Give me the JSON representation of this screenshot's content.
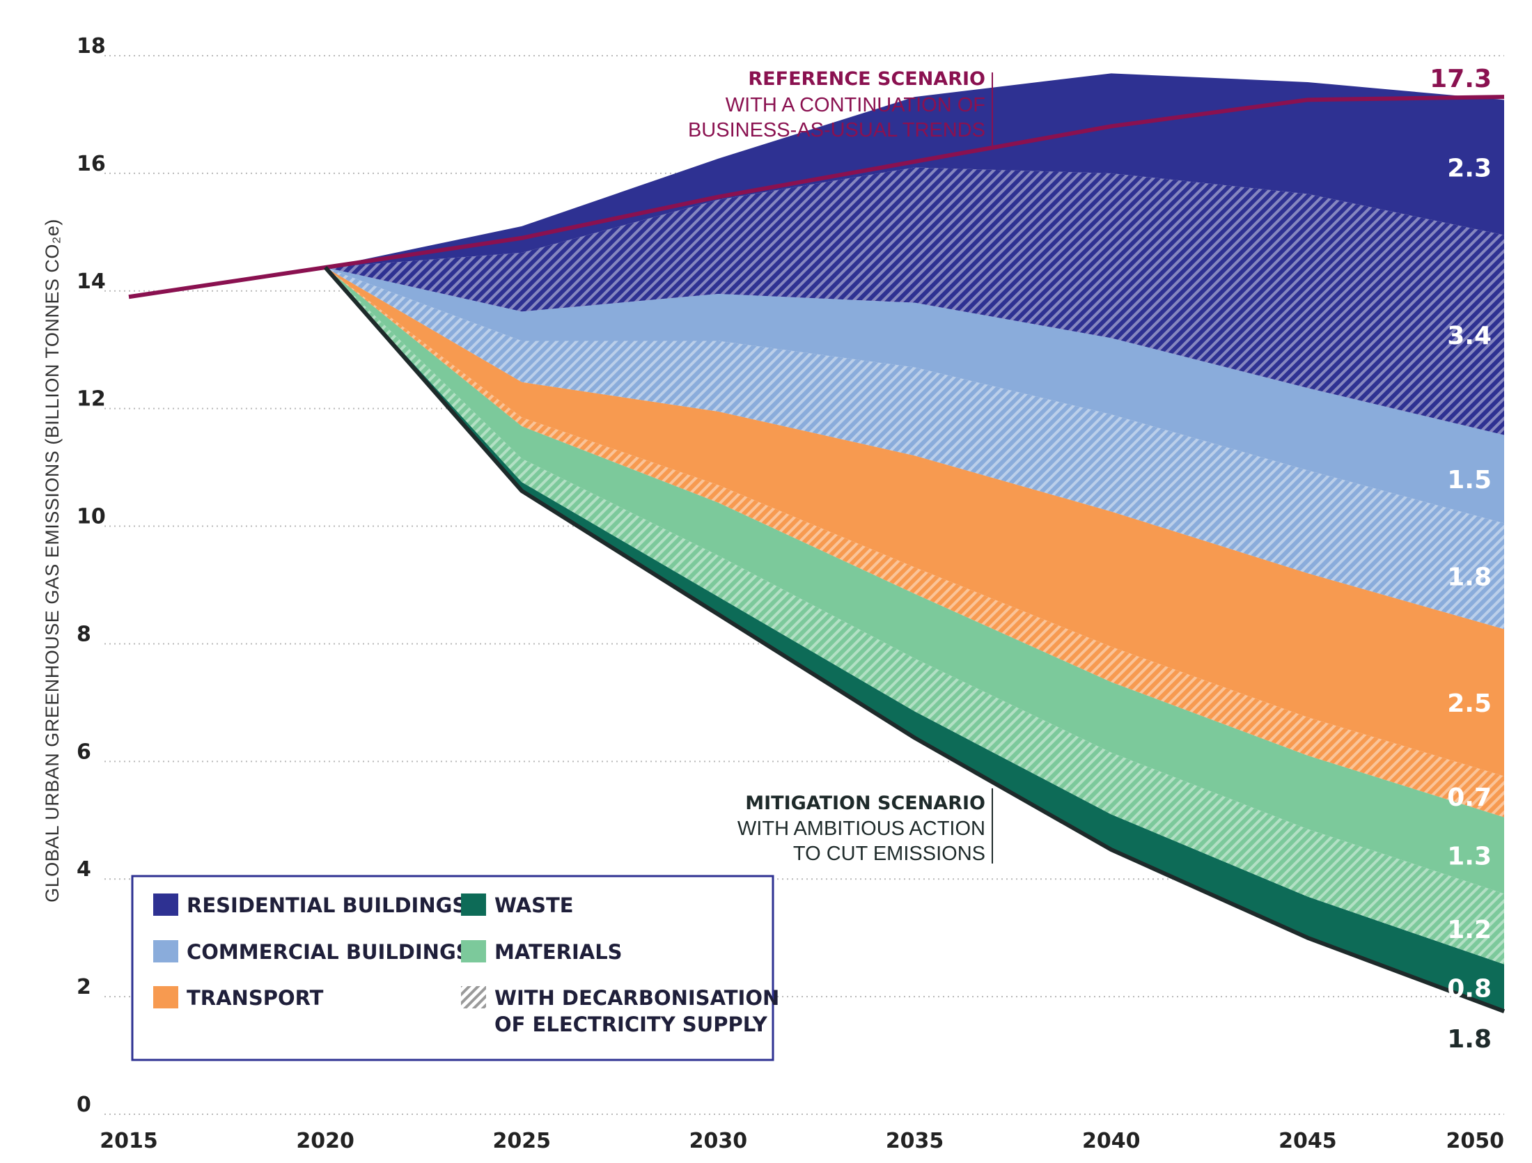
{
  "chart_data": {
    "type": "area",
    "title": "",
    "ylabel": "GLOBAL URBAN GREENHOUSE GAS EMISSIONS (BILLION TONNES CO₂e)",
    "xlabel": "",
    "x": [
      2015,
      2020,
      2025,
      2030,
      2035,
      2040,
      2045,
      2050
    ],
    "ylim": [
      0,
      18
    ],
    "yticks": [
      0,
      2,
      4,
      6,
      8,
      10,
      12,
      14,
      16,
      18
    ],
    "grid": "horizontal dotted",
    "reference_scenario": {
      "name": "REFERENCE SCENARIO",
      "x": [
        2015,
        2020,
        2025,
        2030,
        2035,
        2040,
        2045,
        2050
      ],
      "values": [
        13.9,
        14.4,
        14.9,
        15.6,
        16.2,
        16.8,
        17.25,
        17.3
      ],
      "color": "#8a1150"
    },
    "mitigation_scenario": {
      "name": "MITIGATION SCENARIO",
      "x": [
        2020,
        2025,
        2030,
        2035,
        2040,
        2045,
        2050
      ],
      "values": [
        14.4,
        10.6,
        8.5,
        6.4,
        4.5,
        3.0,
        1.75
      ],
      "color": "#1e2a2a"
    },
    "series": [
      {
        "name": "WASTE",
        "x": [
          2020,
          2025,
          2030,
          2035,
          2040,
          2045,
          2050
        ],
        "values": [
          0.0,
          0.15,
          0.3,
          0.45,
          0.6,
          0.7,
          0.8
        ],
        "color": "#0d6b57",
        "hatched": false,
        "end_label": "0.8"
      },
      {
        "name": "MATERIALS (WITH DECARBONISATION OF ELECTRICITY SUPPLY)",
        "x": [
          2020,
          2025,
          2030,
          2035,
          2040,
          2045,
          2050
        ],
        "values": [
          0.0,
          0.4,
          0.7,
          0.9,
          1.05,
          1.15,
          1.2
        ],
        "color": "#7cc99b",
        "hatched": true,
        "end_label": "1.2"
      },
      {
        "name": "MATERIALS",
        "x": [
          2020,
          2025,
          2030,
          2035,
          2040,
          2045,
          2050
        ],
        "values": [
          0.0,
          0.55,
          0.9,
          1.1,
          1.2,
          1.25,
          1.3
        ],
        "color": "#7cc99b",
        "hatched": false,
        "end_label": "1.3"
      },
      {
        "name": "TRANSPORT (WITH DECARBONISATION OF ELECTRICITY SUPPLY)",
        "x": [
          2020,
          2025,
          2030,
          2035,
          2040,
          2045,
          2050
        ],
        "values": [
          0.0,
          0.15,
          0.3,
          0.45,
          0.6,
          0.65,
          0.7
        ],
        "color": "#f79a50",
        "hatched": true,
        "end_label": "0.7"
      },
      {
        "name": "TRANSPORT",
        "x": [
          2020,
          2025,
          2030,
          2035,
          2040,
          2045,
          2050
        ],
        "values": [
          0.0,
          0.6,
          1.25,
          1.9,
          2.3,
          2.45,
          2.5
        ],
        "color": "#f79a50",
        "hatched": false,
        "end_label": "2.5"
      },
      {
        "name": "COMMERCIAL BUILDINGS (WITH DECARBONISATION OF ELECTRICITY SUPPLY)",
        "x": [
          2020,
          2025,
          2030,
          2035,
          2040,
          2045,
          2050
        ],
        "values": [
          0.0,
          0.7,
          1.2,
          1.5,
          1.65,
          1.75,
          1.8
        ],
        "color": "#8aacdb",
        "hatched": true,
        "end_label": "1.8"
      },
      {
        "name": "COMMERCIAL BUILDINGS",
        "x": [
          2020,
          2025,
          2030,
          2035,
          2040,
          2045,
          2050
        ],
        "values": [
          0.0,
          0.5,
          0.8,
          1.1,
          1.3,
          1.4,
          1.5
        ],
        "color": "#8aacdb",
        "hatched": false,
        "end_label": "1.5"
      },
      {
        "name": "RESIDENTIAL BUILDINGS (WITH DECARBONISATION OF ELECTRICITY SUPPLY)",
        "x": [
          2020,
          2025,
          2030,
          2035,
          2040,
          2045,
          2050
        ],
        "values": [
          0.0,
          1.0,
          1.6,
          2.3,
          2.8,
          3.3,
          3.4
        ],
        "color": "#2e3192",
        "hatched": true,
        "end_label": "3.4"
      },
      {
        "name": "RESIDENTIAL BUILDINGS",
        "x": [
          2020,
          2025,
          2030,
          2035,
          2040,
          2045,
          2050
        ],
        "values": [
          0.0,
          0.45,
          0.7,
          1.2,
          1.7,
          1.9,
          2.3
        ],
        "color": "#2e3192",
        "hatched": false,
        "end_label": "2.3"
      }
    ],
    "end_labels": {
      "reference_total": "17.3",
      "mitigation_total": "1.8"
    },
    "annotations": {
      "reference_heading": "REFERENCE SCENARIO",
      "reference_line1": "WITH A CONTINUATION OF",
      "reference_line2": "BUSINESS-AS-USUAL TRENDS",
      "mitigation_heading": "MITIGATION SCENARIO",
      "mitigation_line1": "WITH AMBITIOUS ACTION",
      "mitigation_line2": "TO CUT EMISSIONS"
    },
    "legend": {
      "placement": "bottom-left",
      "items": [
        {
          "label": "RESIDENTIAL BUILDINGS",
          "color": "#2e3192",
          "hatched": false
        },
        {
          "label": "WASTE",
          "color": "#0d6b57",
          "hatched": false
        },
        {
          "label": "COMMERCIAL BUILDINGS",
          "color": "#8aacdb",
          "hatched": false
        },
        {
          "label": "MATERIALS",
          "color": "#7cc99b",
          "hatched": false
        },
        {
          "label": "TRANSPORT",
          "color": "#f79a50",
          "hatched": false
        },
        {
          "label": "WITH DECARBONISATION",
          "label2": "OF ELECTRICITY SUPPLY",
          "color": "#bdbdbd",
          "hatched": true
        }
      ]
    }
  }
}
